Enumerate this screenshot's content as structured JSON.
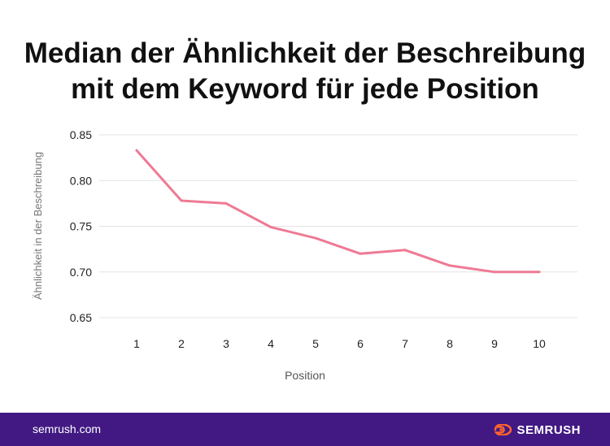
{
  "title_lines": [
    "Median der Ähnlichkeit der Beschreibung",
    "mit dem Keyword für jede Position"
  ],
  "footer": {
    "domain": "semrush.com",
    "brand": "SEMRUSH"
  },
  "colors": {
    "line": "#EE7A94",
    "grid": "#E3E3E3",
    "footer_bg": "#421983",
    "brand_icon": "#FF642D"
  },
  "chart_data": {
    "type": "line",
    "title": "Median der Ähnlichkeit der Beschreibung mit dem Keyword für jede Position",
    "xlabel": "Position",
    "ylabel": "Ähnlichkeit in der Beschreibung",
    "x": [
      1,
      2,
      3,
      4,
      5,
      6,
      7,
      8,
      9,
      10
    ],
    "x_tick_labels": [
      "1",
      "2",
      "3",
      "4",
      "5",
      "6",
      "7",
      "8",
      "9",
      "10"
    ],
    "y_tick_labels": [
      "0.85",
      "0.80",
      "0.75",
      "0.70",
      "0.65"
    ],
    "y_ticks": [
      0.85,
      0.8,
      0.75,
      0.7,
      0.65
    ],
    "ylim": [
      0.65,
      0.85
    ],
    "grid": true,
    "series": [
      {
        "values": [
          0.833,
          0.778,
          0.775,
          0.749,
          0.737,
          0.72,
          0.724,
          0.707,
          0.7,
          0.7
        ]
      }
    ]
  }
}
